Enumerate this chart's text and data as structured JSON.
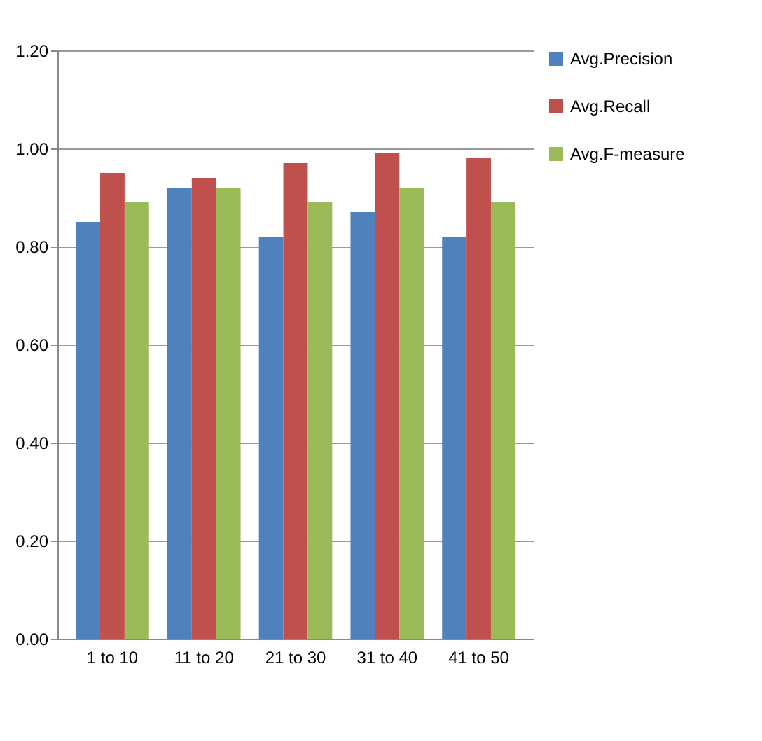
{
  "chart_data": {
    "type": "bar",
    "categories": [
      "1 to 10",
      "11 to 20",
      "21 to 30",
      "31 to 40",
      "41 to 50"
    ],
    "series": [
      {
        "name": "Avg.Precision",
        "color": "#4f81bd",
        "values": [
          0.85,
          0.92,
          0.82,
          0.87,
          0.82
        ]
      },
      {
        "name": "Avg.Recall",
        "color": "#c0504d",
        "values": [
          0.95,
          0.94,
          0.97,
          0.99,
          0.98
        ]
      },
      {
        "name": "Avg.F-measure",
        "color": "#9bbb59",
        "values": [
          0.89,
          0.92,
          0.89,
          0.92,
          0.89
        ]
      }
    ],
    "ylim": [
      0,
      1.2
    ],
    "yticks": [
      {
        "value": 0,
        "label": "0.00"
      },
      {
        "value": 0.2,
        "label": "0.20"
      },
      {
        "value": 0.4,
        "label": "0.40"
      },
      {
        "value": 0.6,
        "label": "0.60"
      },
      {
        "value": 0.8,
        "label": "0.80"
      },
      {
        "value": 1,
        "label": "1.00"
      },
      {
        "value": 1.2,
        "label": "1.20"
      }
    ],
    "grid": "y",
    "legend": "right"
  }
}
